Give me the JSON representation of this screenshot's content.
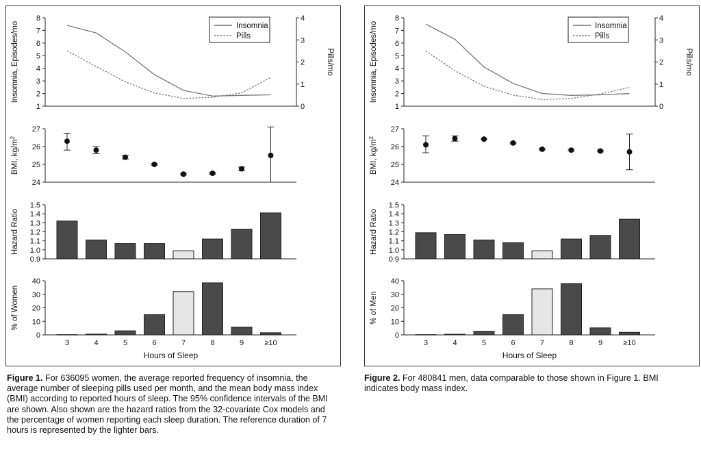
{
  "figures": [
    {
      "caption_label": "Figure 1.",
      "caption_text": " For 636095 women, the average reported frequency of insomnia, the average number of sleeping pills used per month, and the mean body mass index (BMI) according to reported hours of sleep. The 95% confidence intervals of the BMI are shown. Also shown are the hazard ratios from the 32-covariate Cox models and the percentage of women reporting each sleep duration. The reference duration of 7 hours is represented by the lighter bars.",
      "chart_data": [
        {
          "type": "line",
          "categories": [
            "3",
            "4",
            "5",
            "6",
            "7",
            "8",
            "9",
            "≥10"
          ],
          "series": [
            {
              "name": "Insomnia",
              "axis": "left",
              "values": [
                7.4,
                6.8,
                5.3,
                3.5,
                2.25,
                1.8,
                1.85,
                1.9
              ]
            },
            {
              "name": "Pills",
              "axis": "right",
              "values": [
                2.5,
                1.8,
                1.1,
                0.6,
                0.35,
                0.4,
                0.6,
                1.3
              ]
            }
          ],
          "ylabel": "Insomnia, Episodes/mo",
          "ylabel_right": "Pills/mo",
          "ylim": [
            1,
            8
          ],
          "ylim_right": [
            0,
            4
          ],
          "yticks": [
            "1",
            "2",
            "3",
            "4",
            "5",
            "6",
            "7",
            "8"
          ],
          "yticks_right": [
            "0",
            "1",
            "2",
            "3",
            "4"
          ],
          "legend": "top-right"
        },
        {
          "type": "scatter",
          "categories": [
            "3",
            "4",
            "5",
            "6",
            "7",
            "8",
            "9",
            "≥10"
          ],
          "values": [
            26.3,
            25.8,
            25.4,
            25.0,
            24.45,
            24.5,
            24.75,
            25.5
          ],
          "ci_low": [
            25.8,
            25.6,
            25.3,
            24.95,
            24.4,
            24.45,
            24.65,
            24.0
          ],
          "ci_high": [
            26.75,
            26.0,
            25.5,
            25.05,
            24.5,
            24.55,
            24.85,
            27.1
          ],
          "ylabel": "BMI, kg/m",
          "ylabel_sup": "2",
          "ylim": [
            24,
            27
          ],
          "yticks": [
            "24",
            "25",
            "26",
            "27"
          ]
        },
        {
          "type": "bar",
          "categories": [
            "3",
            "4",
            "5",
            "6",
            "7",
            "8",
            "9",
            "≥10"
          ],
          "values": [
            1.32,
            1.11,
            1.07,
            1.07,
            0.99,
            1.12,
            1.23,
            1.41
          ],
          "reference_index": 4,
          "ylabel": "Hazard Ratio",
          "ylim": [
            0.9,
            1.5
          ],
          "yticks": [
            "0.9",
            "1.0",
            "1.1",
            "1.2",
            "1.3",
            "1.4",
            "1.5"
          ]
        },
        {
          "type": "bar",
          "categories": [
            "3",
            "4",
            "5",
            "6",
            "7",
            "8",
            "9",
            "≥10"
          ],
          "values": [
            0.2,
            0.6,
            3.0,
            15.0,
            32.0,
            38.5,
            5.8,
            1.6
          ],
          "reference_index": 4,
          "ylabel": "% of Women",
          "xlabel": "Hours of Sleep",
          "ylim": [
            0,
            40
          ],
          "yticks": [
            "0",
            "10",
            "20",
            "30",
            "40"
          ]
        }
      ]
    },
    {
      "caption_label": "Figure 2.",
      "caption_text": " For 480841 men, data comparable to those shown in Figure 1. BMI indicates body mass index.",
      "chart_data": [
        {
          "type": "line",
          "categories": [
            "3",
            "4",
            "5",
            "6",
            "7",
            "8",
            "9",
            "≥10"
          ],
          "series": [
            {
              "name": "Insomnia",
              "axis": "left",
              "values": [
                7.5,
                6.3,
                4.1,
                2.8,
                2.0,
                1.85,
                1.9,
                2.0
              ]
            },
            {
              "name": "Pills",
              "axis": "right",
              "values": [
                2.5,
                1.6,
                0.9,
                0.5,
                0.3,
                0.35,
                0.55,
                0.85
              ]
            }
          ],
          "ylabel": "Insomnia, Episodes/mo",
          "ylabel_right": "Pills/mo",
          "ylim": [
            1,
            8
          ],
          "ylim_right": [
            0,
            4
          ],
          "yticks": [
            "1",
            "2",
            "3",
            "4",
            "5",
            "6",
            "7",
            "8"
          ],
          "yticks_right": [
            "0",
            "1",
            "2",
            "3",
            "4"
          ],
          "legend": "top-right"
        },
        {
          "type": "scatter",
          "categories": [
            "3",
            "4",
            "5",
            "6",
            "7",
            "8",
            "9",
            "≥10"
          ],
          "values": [
            26.1,
            26.45,
            26.42,
            26.2,
            25.85,
            25.8,
            25.75,
            25.7
          ],
          "ci_low": [
            25.65,
            26.3,
            26.38,
            26.15,
            25.8,
            25.75,
            25.7,
            24.7
          ],
          "ci_high": [
            26.6,
            26.6,
            26.46,
            26.25,
            25.9,
            25.85,
            25.8,
            26.7
          ],
          "ylabel": "BMI, kg/m",
          "ylabel_sup": "2",
          "ylim": [
            24,
            27
          ],
          "yticks": [
            "24",
            "25",
            "26",
            "27"
          ]
        },
        {
          "type": "bar",
          "categories": [
            "3",
            "4",
            "5",
            "6",
            "7",
            "8",
            "9",
            "≥10"
          ],
          "values": [
            1.19,
            1.17,
            1.11,
            1.08,
            0.99,
            1.12,
            1.16,
            1.34
          ],
          "reference_index": 4,
          "ylabel": "Hazard Ratio",
          "ylim": [
            0.9,
            1.5
          ],
          "yticks": [
            "0.9",
            "1.0",
            "1.1",
            "1.2",
            "1.3",
            "1.4",
            "1.5"
          ]
        },
        {
          "type": "bar",
          "categories": [
            "3",
            "4",
            "5",
            "6",
            "7",
            "8",
            "9",
            "≥10"
          ],
          "values": [
            0.2,
            0.5,
            2.7,
            15.0,
            34.0,
            38.0,
            5.2,
            1.9
          ],
          "reference_index": 4,
          "ylabel": "% of Men",
          "xlabel": "Hours of Sleep",
          "ylim": [
            0,
            40
          ],
          "yticks": [
            "0",
            "10",
            "20",
            "30",
            "40"
          ]
        }
      ]
    }
  ],
  "colors": {
    "dark_bar": "#4a4a4a",
    "reference_bar": "#e6e6e6",
    "insomnia_line": "#777777",
    "pills_line": "#777777",
    "axis": "#222222"
  }
}
